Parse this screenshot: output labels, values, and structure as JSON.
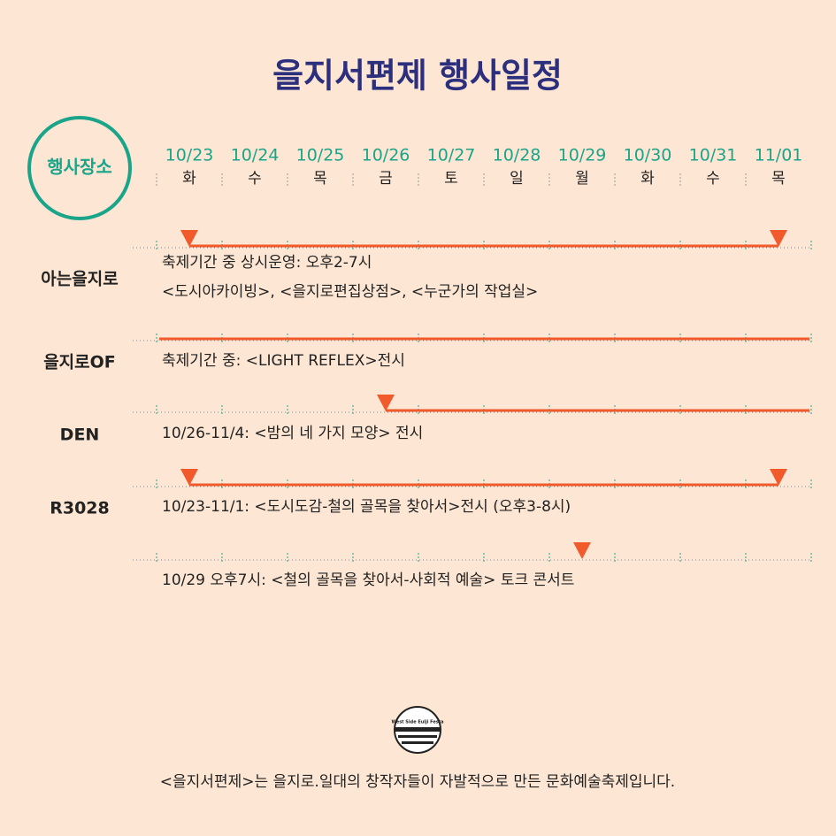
{
  "header": {
    "title": "을지서편제 행사일정",
    "venue_label": "행사장소"
  },
  "dates": [
    "10/23",
    "10/24",
    "10/25",
    "10/26",
    "10/27",
    "10/28",
    "10/29",
    "10/30",
    "10/31",
    "11/01"
  ],
  "days": [
    "화",
    "수",
    "목",
    "금",
    "토",
    "일",
    "월",
    "화",
    "수",
    "목"
  ],
  "rows": [
    {
      "venue": "아는을지로",
      "lines": [
        "축제기간 중 상시운영: 오후2-7시",
        "<도시아카이빙>, <을지로편집상점>, <누군가의 작업실>"
      ]
    },
    {
      "venue": "을지로OF",
      "lines": [
        "축제기간 중: <LIGHT REFLEX>전시"
      ]
    },
    {
      "venue": "DEN",
      "lines": [
        "10/26-11/4: <밤의 네 가지 모양> 전시"
      ]
    },
    {
      "venue": "R3028",
      "lines": [
        "10/23-11/1: <도시도감-철의 골목을 찾아서>전시 (오후3-8시)"
      ]
    },
    {
      "lines": [
        "10/29 오후7시: <철의 골목을 찾아서-사회적 예술> 토크 콘서트"
      ]
    }
  ],
  "logo_text": "West Side Eulji Festa",
  "footer": "<을지서편제>는 을지로.일대의 창작자들이 자발적으로 만든 문화예술축제입니다."
}
